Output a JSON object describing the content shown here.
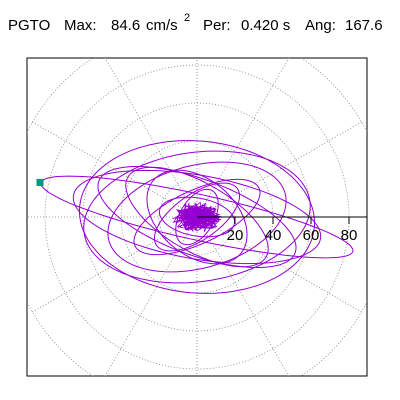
{
  "header": {
    "station": "PGTO",
    "max_label": "Max:",
    "max_value": "84.6",
    "max_unit": "cm/s",
    "max_unit_exp": "2",
    "period_label": "Per:",
    "period_value": "0.420 s",
    "angle_label": "Ang:",
    "angle_value": "167.6"
  },
  "colors": {
    "trace": "#9400d3",
    "marker": "#009a7e",
    "grid": "#808080",
    "axis": "#000000",
    "background": "#ffffff"
  },
  "chart_data": {
    "type": "polar-orbit",
    "title": "",
    "r_ticks": [
      20,
      40,
      60,
      80
    ],
    "r_tick_labels": [
      "20",
      "40",
      "60",
      "80"
    ],
    "r_max": 84.6,
    "grid": true,
    "peak_angle_deg": 167.6,
    "peak_value": 84.6,
    "orbit_loops": [
      {
        "a": 84,
        "b": 12,
        "rot": 167.6
      },
      {
        "a": 66,
        "b": 22,
        "rot": 170
      },
      {
        "a": 60,
        "b": 34,
        "rot": 8
      },
      {
        "a": 55,
        "b": 20,
        "rot": 160
      },
      {
        "a": 48,
        "b": 27,
        "rot": 15
      },
      {
        "a": 42,
        "b": 18,
        "rot": 150
      },
      {
        "a": 62,
        "b": 40,
        "rot": 175
      },
      {
        "a": 36,
        "b": 14,
        "rot": 25
      },
      {
        "a": 30,
        "b": 20,
        "rot": 140
      },
      {
        "a": 26,
        "b": 12,
        "rot": 35
      },
      {
        "a": 20,
        "b": 10,
        "rot": 170
      },
      {
        "a": 16,
        "b": 9,
        "rot": 60
      }
    ]
  }
}
